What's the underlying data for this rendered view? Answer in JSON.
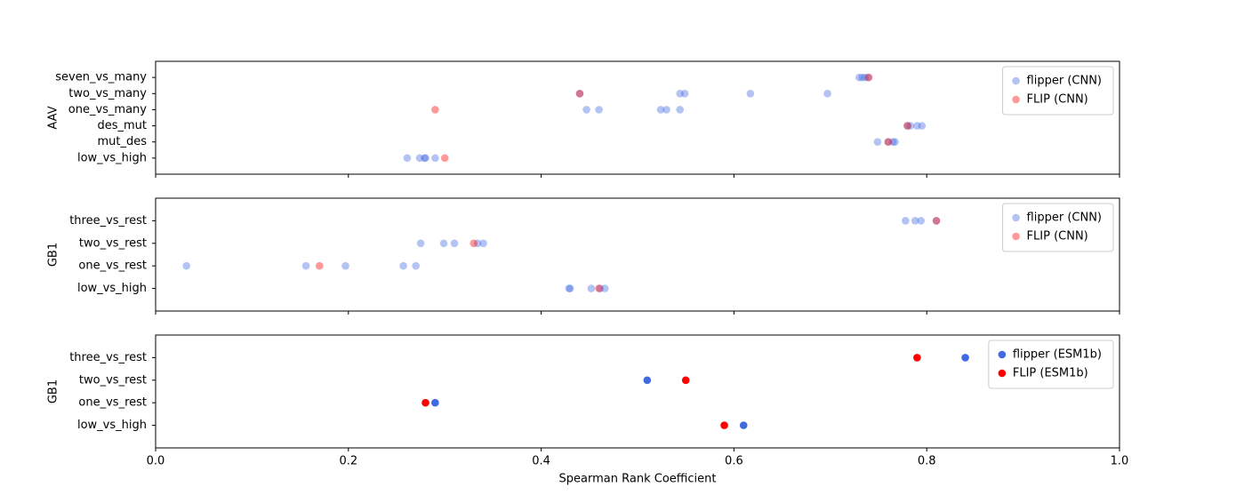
{
  "chart_data": [
    {
      "type": "strip",
      "ylabel": "AAV",
      "xlim": [
        0,
        1
      ],
      "xticks": [
        0,
        0.2,
        0.4,
        0.6,
        0.8,
        1
      ],
      "legend": "upper right",
      "opacity": 0.4,
      "categories": [
        "seven_vs_many",
        "two_vs_many",
        "one_vs_many",
        "des_mut",
        "mut_des",
        "low_vs_high"
      ],
      "series": [
        {
          "name": "flipper (CNN)",
          "color": "#4169e1",
          "values": [
            [
              0.73,
              0.733,
              0.736,
              0.739
            ],
            [
              0.44,
              0.544,
              0.549,
              0.617,
              0.697
            ],
            [
              0.447,
              0.46,
              0.524,
              0.53,
              0.544
            ],
            [
              0.78,
              0.783,
              0.79,
              0.795
            ],
            [
              0.749,
              0.76,
              0.765,
              0.767
            ],
            [
              0.261,
              0.274,
              0.279,
              0.28,
              0.29
            ]
          ]
        },
        {
          "name": "FLIP (CNN)",
          "color": "#ff0000",
          "values": [
            [
              0.74
            ],
            [
              0.44
            ],
            [
              0.29
            ],
            [
              0.78
            ],
            [
              0.76
            ],
            [
              0.3
            ]
          ]
        }
      ]
    },
    {
      "type": "strip",
      "ylabel": "GB1",
      "xlim": [
        0,
        1
      ],
      "xticks": [
        0,
        0.2,
        0.4,
        0.6,
        0.8,
        1
      ],
      "legend": "upper right",
      "opacity": 0.4,
      "categories": [
        "three_vs_rest",
        "two_vs_rest",
        "one_vs_rest",
        "low_vs_high"
      ],
      "series": [
        {
          "name": "flipper (CNN)",
          "color": "#4169e1",
          "values": [
            [
              0.778,
              0.788,
              0.794,
              0.81
            ],
            [
              0.275,
              0.299,
              0.31,
              0.334,
              0.34
            ],
            [
              0.032,
              0.156,
              0.197,
              0.257,
              0.27
            ],
            [
              0.429,
              0.43,
              0.452,
              0.461,
              0.466
            ]
          ]
        },
        {
          "name": "FLIP (CNN)",
          "color": "#ff0000",
          "values": [
            [
              0.81
            ],
            [
              0.33
            ],
            [
              0.17
            ],
            [
              0.46
            ]
          ]
        }
      ]
    },
    {
      "type": "strip",
      "ylabel": "GB1",
      "xlabel": "Spearman Rank Coefficient",
      "xlim": [
        0,
        1
      ],
      "xticks": [
        {
          "value": 0,
          "label": "0.0"
        },
        {
          "value": 0.2,
          "label": "0.2"
        },
        {
          "value": 0.4,
          "label": "0.4"
        },
        {
          "value": 0.6,
          "label": "0.6"
        },
        {
          "value": 0.8,
          "label": "0.8"
        },
        {
          "value": 1,
          "label": "1.0"
        }
      ],
      "legend": "upper right",
      "opacity": 1,
      "categories": [
        "three_vs_rest",
        "two_vs_rest",
        "one_vs_rest",
        "low_vs_high"
      ],
      "series": [
        {
          "name": "flipper (ESM1b)",
          "color": "#4169e1",
          "values": [
            [
              0.84
            ],
            [
              0.51
            ],
            [
              0.29
            ],
            [
              0.61
            ]
          ]
        },
        {
          "name": "FLIP (ESM1b)",
          "color": "#ff0000",
          "values": [
            [
              0.79
            ],
            [
              0.55
            ],
            [
              0.28
            ],
            [
              0.59
            ]
          ]
        }
      ]
    }
  ]
}
